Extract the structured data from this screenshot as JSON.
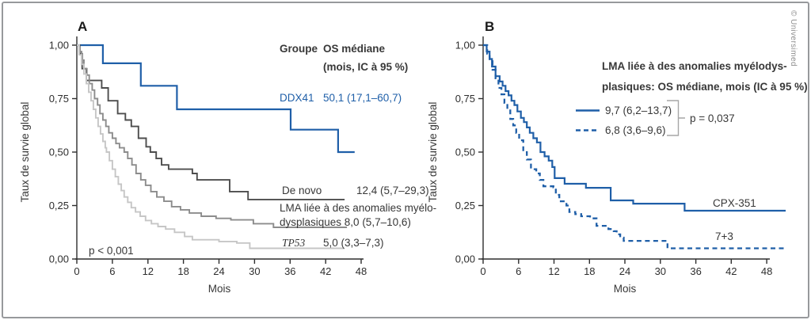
{
  "credit": "© Universimed",
  "chart_data": [
    {
      "panel_label": "A",
      "type": "line",
      "variant": "kaplan_meier_step",
      "xlabel": "Mois",
      "ylabel": "Taux de survie global",
      "xlim": [
        0,
        48
      ],
      "ylim": [
        0,
        1
      ],
      "grid": false,
      "xticks": [
        0,
        6,
        12,
        18,
        24,
        30,
        36,
        42,
        48
      ],
      "xtick_labels": [
        "0",
        "6",
        "12",
        "18",
        "24",
        "30",
        "36",
        "42",
        "48"
      ],
      "yticks": [
        0,
        0.25,
        0.5,
        0.75,
        1.0
      ],
      "ytick_labels": [
        "0,00",
        "0,25",
        "0,50",
        "0,75",
        "1,00"
      ],
      "p_value": "p < 0,001",
      "legend": {
        "header_group": "Groupe",
        "header_os": "OS médiane",
        "header_os2": "(mois, IC à 95 %)",
        "ddx41_name": "DDX41",
        "ddx41_value": "50,1 (17,1–60,7)",
        "denovo_name": "De novo",
        "denovo_value": "12,4 (5,7–29,3)",
        "lma_line1": "LMA liée à des anomalies myélo-",
        "lma_line2": "dysplasiques 8,0 (5,7–10,6)",
        "tp53_name": "TP53",
        "tp53_value": "5,0 (3,3–7,3)"
      },
      "series": [
        {
          "key": "ddx41",
          "name": "DDX41",
          "median_os_months": 50.1,
          "ci95": [
            17.1,
            60.7
          ],
          "color": "#1f5fa8",
          "width": 2.2,
          "dash": null,
          "end": 46.9,
          "points": [
            [
              4.4,
              0.915
            ],
            [
              10.8,
              0.81
            ],
            [
              16.9,
              0.7
            ],
            [
              36.1,
              0.605
            ],
            [
              44.1,
              0.5
            ]
          ]
        },
        {
          "key": "de-novo",
          "name": "De novo",
          "median_os_months": 12.4,
          "ci95": [
            5.7,
            29.3
          ],
          "color": "#4d4d4d",
          "width": 1.9,
          "dash": null,
          "end": 45.2,
          "points": [
            [
              0.5,
              0.96
            ],
            [
              0.9,
              0.89
            ],
            [
              1.6,
              0.835
            ],
            [
              4.2,
              0.8
            ],
            [
              5.3,
              0.74
            ],
            [
              6.9,
              0.68
            ],
            [
              8.2,
              0.65
            ],
            [
              9.2,
              0.62
            ],
            [
              10.4,
              0.565
            ],
            [
              11.7,
              0.525
            ],
            [
              12.4,
              0.5
            ],
            [
              13.4,
              0.47
            ],
            [
              14.3,
              0.44
            ],
            [
              15.5,
              0.42
            ],
            [
              19.5,
              0.4
            ],
            [
              20.3,
              0.37
            ],
            [
              25.8,
              0.315
            ],
            [
              28.9,
              0.278
            ]
          ]
        },
        {
          "key": "lma-mrc",
          "name": "LMA liée à des anomalies myélodysplasiques",
          "median_os_months": 8.0,
          "ci95": [
            5.7,
            10.6
          ],
          "color": "#8c8c8c",
          "width": 1.9,
          "dash": null,
          "end": 45.6,
          "points": [
            [
              0.4,
              0.97
            ],
            [
              0.8,
              0.93
            ],
            [
              1.2,
              0.89
            ],
            [
              1.7,
              0.86
            ],
            [
              2.1,
              0.82
            ],
            [
              2.6,
              0.79
            ],
            [
              3.0,
              0.75
            ],
            [
              3.5,
              0.72
            ],
            [
              3.9,
              0.68
            ],
            [
              4.4,
              0.65
            ],
            [
              4.9,
              0.62
            ],
            [
              5.4,
              0.59
            ],
            [
              6.0,
              0.565
            ],
            [
              6.6,
              0.54
            ],
            [
              7.2,
              0.52
            ],
            [
              8.0,
              0.5
            ],
            [
              8.6,
              0.47
            ],
            [
              9.3,
              0.44
            ],
            [
              10.0,
              0.4
            ],
            [
              10.8,
              0.37
            ],
            [
              11.6,
              0.345
            ],
            [
              12.5,
              0.315
            ],
            [
              13.5,
              0.29
            ],
            [
              14.7,
              0.27
            ],
            [
              16.0,
              0.245
            ],
            [
              17.5,
              0.23
            ],
            [
              19.0,
              0.215
            ],
            [
              21.0,
              0.2
            ],
            [
              23.5,
              0.19
            ],
            [
              26.0,
              0.183
            ],
            [
              29.8,
              0.165
            ],
            [
              33.2,
              0.148
            ]
          ]
        },
        {
          "key": "tp53",
          "name": "TP53",
          "median_os_months": 5.0,
          "ci95": [
            3.3,
            7.3
          ],
          "color": "#c6c6c6",
          "width": 1.9,
          "dash": null,
          "end": 45.2,
          "points": [
            [
              0.4,
              0.955
            ],
            [
              0.8,
              0.91
            ],
            [
              1.2,
              0.865
            ],
            [
              1.6,
              0.82
            ],
            [
              2.0,
              0.78
            ],
            [
              2.4,
              0.74
            ],
            [
              2.8,
              0.7
            ],
            [
              3.2,
              0.66
            ],
            [
              3.6,
              0.62
            ],
            [
              4.0,
              0.585
            ],
            [
              4.4,
              0.55
            ],
            [
              4.8,
              0.52
            ],
            [
              5.0,
              0.5
            ],
            [
              5.5,
              0.46
            ],
            [
              6.0,
              0.42
            ],
            [
              6.5,
              0.385
            ],
            [
              7.0,
              0.35
            ],
            [
              7.5,
              0.32
            ],
            [
              8.0,
              0.29
            ],
            [
              8.6,
              0.265
            ],
            [
              9.2,
              0.24
            ],
            [
              9.9,
              0.22
            ],
            [
              10.7,
              0.2
            ],
            [
              11.6,
              0.18
            ],
            [
              12.6,
              0.165
            ],
            [
              13.7,
              0.152
            ],
            [
              15.0,
              0.14
            ],
            [
              16.5,
              0.125
            ],
            [
              18.2,
              0.105
            ],
            [
              19.5,
              0.09
            ],
            [
              24.0,
              0.082
            ],
            [
              27.0,
              0.075
            ],
            [
              29.2,
              0.05
            ]
          ]
        }
      ]
    },
    {
      "panel_label": "B",
      "type": "line",
      "variant": "kaplan_meier_step",
      "xlabel": "Mois",
      "ylabel": "Taux de survie global",
      "xlim": [
        0,
        48
      ],
      "ylim": [
        0,
        1
      ],
      "grid": false,
      "xticks": [
        0,
        6,
        12,
        18,
        24,
        30,
        36,
        42,
        48
      ],
      "xtick_labels": [
        "0",
        "6",
        "12",
        "18",
        "24",
        "30",
        "36",
        "42",
        "48"
      ],
      "yticks": [
        0,
        0.25,
        0.5,
        0.75,
        1.0
      ],
      "ytick_labels": [
        "0,00",
        "0,25",
        "0,50",
        "0,75",
        "1,00"
      ],
      "p_value": "p = 0,037",
      "legend": {
        "title_line1": "LMA liée à des anomalies myélodys-",
        "title_line2": "plasiques: OS médiane, mois (IC à 95 %)",
        "solid_value": "9,7 (6,2–13,7)",
        "dashed_value": "6,8 (3,6–9,6)",
        "cpx_label": "CPX-351",
        "seven3_label": "7+3"
      },
      "series": [
        {
          "key": "cpx-351",
          "name": "CPX-351",
          "median_os_months": 9.7,
          "ci95": [
            6.2,
            13.7
          ],
          "color": "#1f5fa8",
          "width": 2.2,
          "dash": null,
          "end": 51.2,
          "points": [
            [
              0.6,
              0.97
            ],
            [
              1.1,
              0.935
            ],
            [
              1.5,
              0.9
            ],
            [
              2.1,
              0.855
            ],
            [
              2.8,
              0.83
            ],
            [
              3.3,
              0.81
            ],
            [
              3.8,
              0.785
            ],
            [
              4.3,
              0.765
            ],
            [
              4.8,
              0.74
            ],
            [
              5.3,
              0.72
            ],
            [
              5.8,
              0.69
            ],
            [
              6.4,
              0.66
            ],
            [
              6.9,
              0.64
            ],
            [
              7.4,
              0.615
            ],
            [
              7.9,
              0.59
            ],
            [
              8.5,
              0.565
            ],
            [
              9.1,
              0.545
            ],
            [
              9.7,
              0.5
            ],
            [
              10.4,
              0.48
            ],
            [
              11.1,
              0.46
            ],
            [
              11.7,
              0.43
            ],
            [
              12.1,
              0.378
            ],
            [
              13.8,
              0.352
            ],
            [
              17.4,
              0.333
            ],
            [
              21.6,
              0.274
            ],
            [
              25.4,
              0.259
            ],
            [
              34.1,
              0.226
            ]
          ]
        },
        {
          "key": "seven-plus-three",
          "name": "7+3",
          "median_os_months": 6.8,
          "ci95": [
            3.6,
            9.6
          ],
          "color": "#1f5fa8",
          "width": 2.3,
          "dash": "6 4.5",
          "end": 51.2,
          "points": [
            [
              0.7,
              0.96
            ],
            [
              1.1,
              0.925
            ],
            [
              1.6,
              0.885
            ],
            [
              2.1,
              0.845
            ],
            [
              2.6,
              0.8
            ],
            [
              3.1,
              0.77
            ],
            [
              3.6,
              0.73
            ],
            [
              4.1,
              0.7
            ],
            [
              4.6,
              0.655
            ],
            [
              5.1,
              0.625
            ],
            [
              5.6,
              0.59
            ],
            [
              6.1,
              0.555
            ],
            [
              6.8,
              0.5
            ],
            [
              7.4,
              0.465
            ],
            [
              8.1,
              0.42
            ],
            [
              9.0,
              0.4
            ],
            [
              9.6,
              0.37
            ],
            [
              10.2,
              0.34
            ],
            [
              11.9,
              0.335
            ],
            [
              12.3,
              0.3
            ],
            [
              12.9,
              0.27
            ],
            [
              14.1,
              0.25
            ],
            [
              14.6,
              0.22
            ],
            [
              15.6,
              0.21
            ],
            [
              16.6,
              0.2
            ],
            [
              18.1,
              0.19
            ],
            [
              19.2,
              0.155
            ],
            [
              21.2,
              0.14
            ],
            [
              22.1,
              0.13
            ],
            [
              22.6,
              0.115
            ],
            [
              23.2,
              0.1
            ],
            [
              23.8,
              0.085
            ],
            [
              31.2,
              0.05
            ]
          ]
        }
      ]
    }
  ]
}
